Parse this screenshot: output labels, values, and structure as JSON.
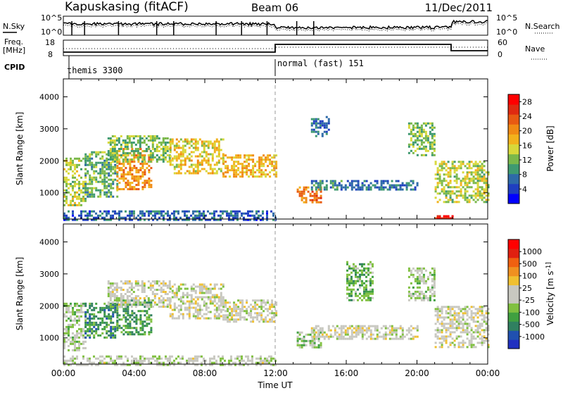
{
  "header": {
    "station": "Kapuskasing (fitACF)",
    "beam": "Beam 06",
    "date": "11/Dec/2011"
  },
  "noise_panel": {
    "left_label": "N.Sky",
    "right_label": "N.Search",
    "left_ticks": [
      "10^5",
      "10^0"
    ],
    "right_ticks": [
      "10^5",
      "10^0"
    ]
  },
  "freq_panel": {
    "left_label_1": "Freq.",
    "left_label_2": "[MHz]",
    "right_label": "Nave",
    "left_ticks": [
      "18",
      "8"
    ],
    "right_ticks": [
      "60",
      "0"
    ]
  },
  "cpid": {
    "label": "CPID",
    "segments": [
      {
        "name": "themis 3300",
        "start_hour": 0,
        "end_hour": 12
      },
      {
        "name": "normal (fast) 151",
        "start_hour": 12,
        "end_hour": 24
      }
    ]
  },
  "chart_data": [
    {
      "type": "heatmap",
      "title": "",
      "xlabel": "Time UT",
      "ylabel": "Slant Range [km]",
      "x_ticks": [
        "00:00",
        "04:00",
        "08:00",
        "12:00",
        "16:00",
        "20:00",
        "00:00"
      ],
      "x_range_hours": [
        0,
        24
      ],
      "y_ticks": [
        "1000",
        "2000",
        "3000",
        "4000"
      ],
      "ylim": [
        180,
        4560
      ],
      "colorbar": {
        "label": "Power [dB]",
        "ticks": [
          "4",
          "8",
          "12",
          "16",
          "20",
          "24",
          "28"
        ],
        "range": [
          0,
          30
        ],
        "colors": [
          "#0000ff",
          "#1f3fc0",
          "#2e6aa8",
          "#3f9a70",
          "#7ab84a",
          "#d8d83a",
          "#f2b21c",
          "#f08a14",
          "#e85a12",
          "#e02a10",
          "#ff0000"
        ]
      },
      "echo_regions": [
        {
          "t0": 0.0,
          "t1": 1.2,
          "r0": 600,
          "r1": 2100,
          "value": 14
        },
        {
          "t0": 1.2,
          "t1": 3.0,
          "r0": 900,
          "r1": 2300,
          "value": 11
        },
        {
          "t0": 3.0,
          "t1": 5.0,
          "r0": 1100,
          "r1": 2400,
          "value": 20
        },
        {
          "t0": 2.5,
          "t1": 6.0,
          "r0": 2000,
          "r1": 2800,
          "value": 12
        },
        {
          "t0": 6.0,
          "t1": 9.0,
          "r0": 1600,
          "r1": 2700,
          "value": 16
        },
        {
          "t0": 9.0,
          "t1": 12.0,
          "r0": 1500,
          "r1": 2200,
          "value": 18
        },
        {
          "t0": 0.0,
          "t1": 12.0,
          "r0": 180,
          "r1": 450,
          "value": 6
        },
        {
          "t0": 13.2,
          "t1": 14.6,
          "r0": 700,
          "r1": 1200,
          "value": 22
        },
        {
          "t0": 14.0,
          "t1": 16.5,
          "r0": 1100,
          "r1": 1400,
          "value": 8
        },
        {
          "t0": 16.5,
          "t1": 20.0,
          "r0": 1100,
          "r1": 1400,
          "value": 7
        },
        {
          "t0": 19.5,
          "t1": 21.0,
          "r0": 2200,
          "r1": 3200,
          "value": 12
        },
        {
          "t0": 21.0,
          "t1": 24.0,
          "r0": 700,
          "r1": 2000,
          "value": 14
        },
        {
          "t0": 21.0,
          "t1": 22.0,
          "r0": 180,
          "r1": 300,
          "value": 28
        },
        {
          "t0": 14.0,
          "t1": 15.0,
          "r0": 2800,
          "r1": 3400,
          "value": 6
        }
      ]
    },
    {
      "type": "heatmap",
      "title": "",
      "xlabel": "Time UT",
      "ylabel": "Slant Range [km]",
      "x_ticks": [
        "00:00",
        "04:00",
        "08:00",
        "12:00",
        "16:00",
        "20:00",
        "00:00"
      ],
      "x_range_hours": [
        0,
        24
      ],
      "y_ticks": [
        "1000",
        "2000",
        "3000",
        "4000"
      ],
      "ylim": [
        180,
        4560
      ],
      "colorbar": {
        "label": "Velocity [m s^-1]",
        "ticks": [
          "1000",
          "500",
          "100",
          "25",
          "-25",
          "-100",
          "-500",
          "-1000"
        ],
        "range": [
          -1200,
          1200
        ],
        "colors": [
          "#2030c0",
          "#2050b0",
          "#308060",
          "#40a040",
          "#80c040",
          "#c8c8c0",
          "#c8c8c0",
          "#f0c030",
          "#f09020",
          "#f06010",
          "#e02010",
          "#ff0000"
        ]
      },
      "echo_regions": [
        {
          "t0": 0.0,
          "t1": 1.2,
          "r0": 600,
          "r1": 2100,
          "value": -150
        },
        {
          "t0": 1.2,
          "t1": 3.0,
          "r0": 1000,
          "r1": 2100,
          "value": -600
        },
        {
          "t0": 3.0,
          "t1": 5.0,
          "r0": 1100,
          "r1": 2200,
          "value": -500
        },
        {
          "t0": 2.5,
          "t1": 6.0,
          "r0": 2000,
          "r1": 2800,
          "value": 0
        },
        {
          "t0": 6.0,
          "t1": 9.0,
          "r0": 1600,
          "r1": 2700,
          "value": 0
        },
        {
          "t0": 9.0,
          "t1": 12.0,
          "r0": 1500,
          "r1": 2200,
          "value": 0
        },
        {
          "t0": 0.0,
          "t1": 12.0,
          "r0": 180,
          "r1": 450,
          "value": -80
        },
        {
          "t0": 13.2,
          "t1": 14.6,
          "r0": 700,
          "r1": 1200,
          "value": -300
        },
        {
          "t0": 14.0,
          "t1": 20.0,
          "r0": 1000,
          "r1": 1400,
          "value": 0
        },
        {
          "t0": 19.5,
          "t1": 21.0,
          "r0": 2200,
          "r1": 3200,
          "value": -200
        },
        {
          "t0": 21.0,
          "t1": 24.0,
          "r0": 700,
          "r1": 2000,
          "value": 0
        },
        {
          "t0": 16.0,
          "t1": 17.5,
          "r0": 2200,
          "r1": 3400,
          "value": -400
        }
      ]
    }
  ]
}
